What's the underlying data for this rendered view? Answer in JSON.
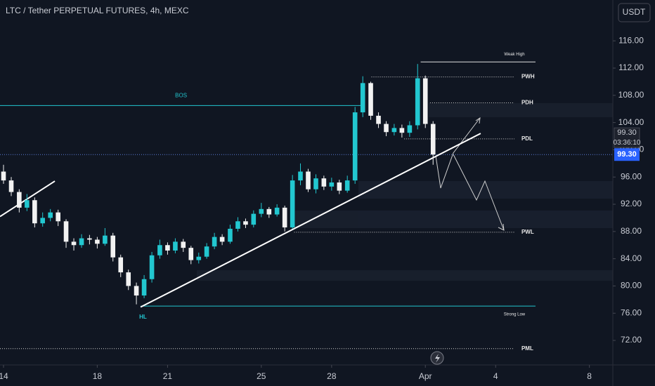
{
  "chart_data": {
    "type": "candlestick",
    "title": "LTC / Tether PERPETUAL FUTURES, 4h, MEXC",
    "currency_button": "USDT",
    "up_color": "#22c7d0",
    "down_color": "#f2f2f2",
    "background": "#101622",
    "xlim": [
      -0.15,
      26.0
    ],
    "ylim": [
      68.4,
      122.0
    ],
    "xticks": [
      {
        "value": 0,
        "label": "14"
      },
      {
        "value": 4,
        "label": "18"
      },
      {
        "value": 7,
        "label": "21"
      },
      {
        "value": 11,
        "label": "25"
      },
      {
        "value": 14,
        "label": "28"
      },
      {
        "value": 18,
        "label": "Apr"
      },
      {
        "value": 21,
        "label": "4"
      },
      {
        "value": 25,
        "label": "8"
      }
    ],
    "yticks": [
      {
        "value": 72,
        "label": "72.00"
      },
      {
        "value": 76,
        "label": "76.00"
      },
      {
        "value": 80,
        "label": "80.00"
      },
      {
        "value": 84,
        "label": "84.00"
      },
      {
        "value": 88,
        "label": "88.00"
      },
      {
        "value": 92,
        "label": "92.00"
      },
      {
        "value": 96,
        "label": "96.00"
      },
      {
        "value": 100,
        "label": "100.00"
      },
      {
        "value": 104,
        "label": "104.00"
      },
      {
        "value": 108,
        "label": "108.00"
      },
      {
        "value": 112,
        "label": "112.00"
      },
      {
        "value": 116,
        "label": "116.00"
      }
    ],
    "x": [
      0,
      0.33,
      0.67,
      1,
      1.33,
      1.67,
      2,
      2.33,
      2.67,
      3,
      3.33,
      3.67,
      4,
      4.33,
      4.67,
      5,
      5.33,
      5.67,
      6,
      6.33,
      6.67,
      7,
      7.33,
      7.67,
      8,
      8.33,
      8.67,
      9,
      9.33,
      9.67,
      10,
      10.33,
      10.67,
      11,
      11.33,
      11.67,
      12,
      12.33,
      12.67,
      13,
      13.33,
      13.67,
      14,
      14.33,
      14.67,
      15,
      15.33,
      15.67,
      16,
      16.33,
      16.67,
      17,
      17.33,
      17.67,
      18,
      18.33
    ],
    "open": [
      96.8,
      95.5,
      93.8,
      91.5,
      92.6,
      89.2,
      90.0,
      90.8,
      89.5,
      86.5,
      86.0,
      87.0,
      86.8,
      86.2,
      87.4,
      84.2,
      82.0,
      80.0,
      78.6,
      81.0,
      84.5,
      86.0,
      85.2,
      86.5,
      85.6,
      83.8,
      84.3,
      85.8,
      87.2,
      86.5,
      88.4,
      89.5,
      89.0,
      90.6,
      91.3,
      90.5,
      91.5,
      88.6,
      95.5,
      96.8,
      94.2,
      95.8,
      94.6,
      95.2,
      94.0,
      95.5,
      105.5,
      109.8,
      105.0,
      103.8,
      102.6,
      103.2,
      102.5,
      103.6,
      110.5,
      103.8
    ],
    "high": [
      97.8,
      96.0,
      94.2,
      93.5,
      93.0,
      90.8,
      91.3,
      91.2,
      89.8,
      87.0,
      87.6,
      87.5,
      87.2,
      88.5,
      87.8,
      84.6,
      82.4,
      80.5,
      81.6,
      85.0,
      86.8,
      86.4,
      87.0,
      86.9,
      85.9,
      84.9,
      86.3,
      87.8,
      87.6,
      89.0,
      90.1,
      89.9,
      91.1,
      92.2,
      91.6,
      92.0,
      91.8,
      96.3,
      98.0,
      97.2,
      96.4,
      96.2,
      95.9,
      95.6,
      96.2,
      106.3,
      110.8,
      110.0,
      105.5,
      104.2,
      103.8,
      103.7,
      104.2,
      112.6,
      110.9,
      104.2
    ],
    "low": [
      95.0,
      93.2,
      90.8,
      91.0,
      88.6,
      88.7,
      89.5,
      88.8,
      85.6,
      85.2,
      85.6,
      86.1,
      85.5,
      85.9,
      83.6,
      81.3,
      79.4,
      77.3,
      78.2,
      80.5,
      84.0,
      84.6,
      84.8,
      85.0,
      83.2,
      83.3,
      84.0,
      85.4,
      86.0,
      86.2,
      88.0,
      88.5,
      88.6,
      90.1,
      90.0,
      90.2,
      88.0,
      88.4,
      94.8,
      93.8,
      93.6,
      94.1,
      94.0,
      93.5,
      93.7,
      95.0,
      104.8,
      104.4,
      103.2,
      102.0,
      102.1,
      101.8,
      101.9,
      103.0,
      103.2,
      97.8
    ],
    "close": [
      95.5,
      93.8,
      91.5,
      92.6,
      89.2,
      90.0,
      90.8,
      89.5,
      86.5,
      86.0,
      87.0,
      86.8,
      86.2,
      87.4,
      84.2,
      82.0,
      80.0,
      78.6,
      81.0,
      84.5,
      86.0,
      85.2,
      86.5,
      85.6,
      83.8,
      84.3,
      85.8,
      87.2,
      86.5,
      88.4,
      89.5,
      89.0,
      90.6,
      91.3,
      90.5,
      91.5,
      88.6,
      95.5,
      96.8,
      94.2,
      95.8,
      94.6,
      95.2,
      94.0,
      95.5,
      105.5,
      109.8,
      105.0,
      103.8,
      102.6,
      103.2,
      102.5,
      103.6,
      110.5,
      103.8,
      99.3
    ],
    "last_price": {
      "value": 99.3,
      "label": "99.30"
    },
    "countdown": "03:36:10",
    "levels": [
      {
        "label": "BOS",
        "value": 106.5,
        "x1": -0.15,
        "x2": 15.3,
        "style": "solid",
        "color": "#22c7d0",
        "label_pos": "center"
      },
      {
        "label": "Weak High",
        "value": 112.9,
        "x1": 17.8,
        "x2": 22.7,
        "style": "solid",
        "color": "#e0e0e0",
        "label_pos": "above-end"
      },
      {
        "label": "PWH",
        "value": 110.7,
        "x1": 15.7,
        "x2": 21.8,
        "style": "dotted",
        "color": "#d0d0d0",
        "label_pos": "right"
      },
      {
        "label": "PDH",
        "value": 106.9,
        "x1": 18.2,
        "x2": 21.8,
        "style": "dotted",
        "color": "#d0d0d0",
        "label_pos": "right"
      },
      {
        "label": "PDL",
        "value": 101.6,
        "x1": 17.1,
        "x2": 21.8,
        "style": "dotted",
        "color": "#d0d0d0",
        "label_pos": "right"
      },
      {
        "label": "PWL",
        "value": 87.9,
        "x1": 12.4,
        "x2": 21.8,
        "style": "dotted",
        "color": "#d0d0d0",
        "label_pos": "right"
      },
      {
        "label": "Strong Low",
        "value": 77.05,
        "x1": 5.85,
        "x2": 22.7,
        "style": "solid",
        "color": "#22c7d0",
        "label_pos": "below-end"
      },
      {
        "label": "PML",
        "value": 70.8,
        "x1": -0.15,
        "x2": 21.8,
        "style": "dotted",
        "color": "#d0d0d0",
        "label_pos": "right"
      }
    ],
    "annotations": [
      {
        "text": "HL",
        "x": 5.95,
        "y": 75.4
      }
    ],
    "trendlines": [
      {
        "x": [
          5.85,
          20.36
        ],
        "y": [
          76.9,
          102.4
        ]
      },
      {
        "x": [
          -0.15,
          2.19
        ],
        "y": [
          90.2,
          95.4
        ]
      }
    ]
  }
}
